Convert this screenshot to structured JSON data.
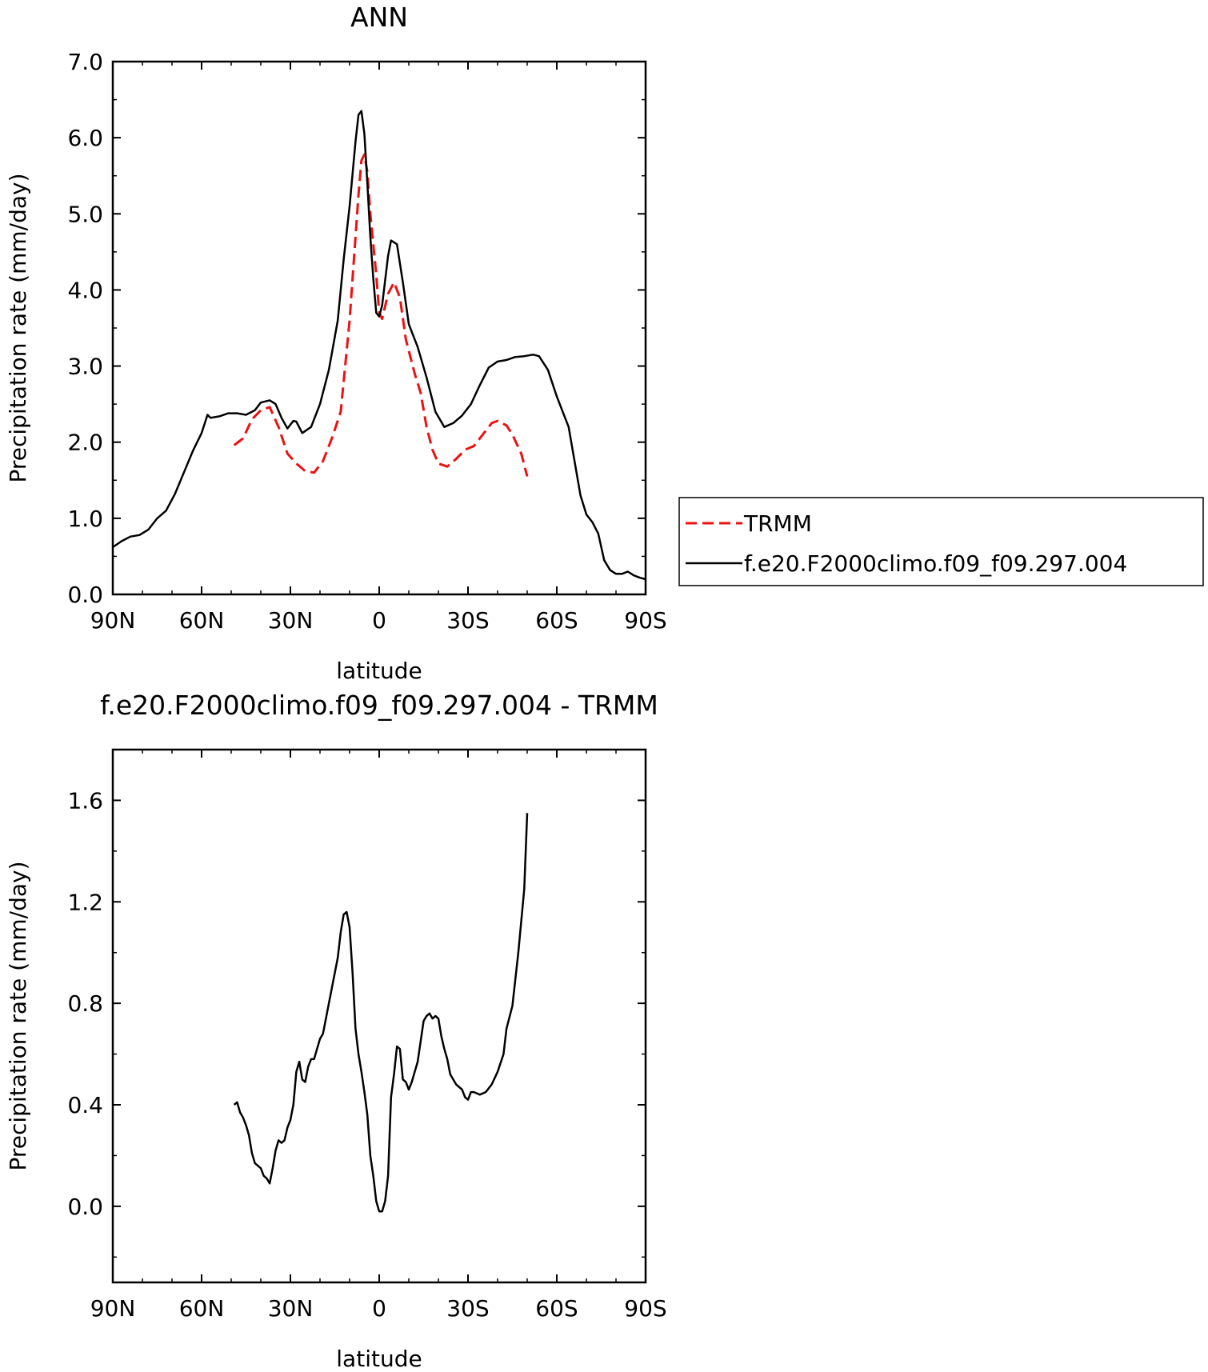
{
  "chart_data": [
    {
      "type": "line",
      "title": "ANN",
      "xlabel": "latitude",
      "ylabel": "Precipitation rate (mm/day)",
      "xlim": [
        90,
        -90
      ],
      "ylim": [
        0,
        7
      ],
      "x_ticks": [
        90,
        60,
        30,
        0,
        -30,
        -60,
        -90
      ],
      "x_tick_labels": [
        "90N",
        "60N",
        "30N",
        "0",
        "30S",
        "60S",
        "90S"
      ],
      "y_ticks": [
        0,
        1,
        2,
        3,
        4,
        5,
        6,
        7
      ],
      "y_tick_labels": [
        "0.0",
        "1.0",
        "2.0",
        "3.0",
        "4.0",
        "5.0",
        "6.0",
        "7.0"
      ],
      "legend_position": "right",
      "series": [
        {
          "name": "TRMM",
          "color": "#ee1111",
          "style": "dashed",
          "points": [
            [
              49,
              1.96
            ],
            [
              46,
              2.05
            ],
            [
              43,
              2.3
            ],
            [
              40,
              2.42
            ],
            [
              37,
              2.46
            ],
            [
              34,
              2.2
            ],
            [
              31,
              1.85
            ],
            [
              28,
              1.72
            ],
            [
              25,
              1.62
            ],
            [
              22,
              1.6
            ],
            [
              19,
              1.75
            ],
            [
              16,
              2.05
            ],
            [
              13,
              2.4
            ],
            [
              10,
              3.6
            ],
            [
              7,
              5.25
            ],
            [
              6,
              5.7
            ],
            [
              5,
              5.78
            ],
            [
              4,
              5.55
            ],
            [
              3,
              5.0
            ],
            [
              1,
              4.2
            ],
            [
              0,
              3.7
            ],
            [
              -1,
              3.62
            ],
            [
              -3,
              3.95
            ],
            [
              -5,
              4.1
            ],
            [
              -7,
              3.9
            ],
            [
              -9,
              3.35
            ],
            [
              -12,
              2.9
            ],
            [
              -14,
              2.65
            ],
            [
              -16,
              2.2
            ],
            [
              -18,
              1.9
            ],
            [
              -20,
              1.72
            ],
            [
              -23,
              1.68
            ],
            [
              -26,
              1.78
            ],
            [
              -29,
              1.9
            ],
            [
              -32,
              1.95
            ],
            [
              -35,
              2.1
            ],
            [
              -38,
              2.25
            ],
            [
              -40,
              2.28
            ],
            [
              -43,
              2.22
            ],
            [
              -45,
              2.1
            ],
            [
              -48,
              1.85
            ],
            [
              -50,
              1.55
            ]
          ]
        },
        {
          "name": "f.e20.F2000climo.f09_f09.297.004",
          "color": "#000000",
          "style": "solid",
          "points": [
            [
              90,
              0.62
            ],
            [
              87,
              0.7
            ],
            [
              84,
              0.76
            ],
            [
              81,
              0.78
            ],
            [
              78,
              0.85
            ],
            [
              75,
              1.0
            ],
            [
              72,
              1.1
            ],
            [
              69,
              1.32
            ],
            [
              66,
              1.6
            ],
            [
              63,
              1.88
            ],
            [
              60,
              2.12
            ],
            [
              58,
              2.36
            ],
            [
              57,
              2.32
            ],
            [
              54,
              2.34
            ],
            [
              51,
              2.38
            ],
            [
              48,
              2.38
            ],
            [
              45,
              2.36
            ],
            [
              42,
              2.42
            ],
            [
              40,
              2.52
            ],
            [
              37,
              2.55
            ],
            [
              35,
              2.5
            ],
            [
              33,
              2.32
            ],
            [
              31,
              2.18
            ],
            [
              29,
              2.28
            ],
            [
              28,
              2.27
            ],
            [
              26,
              2.12
            ],
            [
              23,
              2.2
            ],
            [
              20,
              2.5
            ],
            [
              17,
              2.95
            ],
            [
              14,
              3.6
            ],
            [
              12,
              4.4
            ],
            [
              10,
              5.1
            ],
            [
              8,
              5.95
            ],
            [
              7,
              6.3
            ],
            [
              6,
              6.35
            ],
            [
              5,
              6.05
            ],
            [
              4,
              5.4
            ],
            [
              3,
              4.7
            ],
            [
              2,
              4.15
            ],
            [
              1,
              3.7
            ],
            [
              0,
              3.65
            ],
            [
              -1,
              3.8
            ],
            [
              -3,
              4.45
            ],
            [
              -4,
              4.65
            ],
            [
              -6,
              4.6
            ],
            [
              -8,
              4.1
            ],
            [
              -10,
              3.55
            ],
            [
              -13,
              3.25
            ],
            [
              -16,
              2.85
            ],
            [
              -19,
              2.4
            ],
            [
              -22,
              2.2
            ],
            [
              -25,
              2.25
            ],
            [
              -28,
              2.35
            ],
            [
              -31,
              2.5
            ],
            [
              -34,
              2.75
            ],
            [
              -37,
              2.98
            ],
            [
              -40,
              3.06
            ],
            [
              -43,
              3.08
            ],
            [
              -46,
              3.12
            ],
            [
              -49,
              3.13
            ],
            [
              -52,
              3.15
            ],
            [
              -54,
              3.13
            ],
            [
              -57,
              2.95
            ],
            [
              -60,
              2.6
            ],
            [
              -62,
              2.4
            ],
            [
              -64,
              2.2
            ],
            [
              -66,
              1.75
            ],
            [
              -68,
              1.3
            ],
            [
              -70,
              1.05
            ],
            [
              -72,
              0.95
            ],
            [
              -74,
              0.8
            ],
            [
              -76,
              0.45
            ],
            [
              -78,
              0.32
            ],
            [
              -80,
              0.27
            ],
            [
              -82,
              0.27
            ],
            [
              -84,
              0.3
            ],
            [
              -86,
              0.25
            ],
            [
              -88,
              0.22
            ],
            [
              -90,
              0.2
            ]
          ]
        }
      ]
    },
    {
      "type": "line",
      "title": "f.e20.F2000climo.f09_f09.297.004 - TRMM",
      "xlabel": "latitude",
      "ylabel": "Precipitation rate (mm/day)",
      "xlim": [
        90,
        -90
      ],
      "ylim": [
        -0.3,
        1.8
      ],
      "x_ticks": [
        90,
        60,
        30,
        0,
        -30,
        -60,
        -90
      ],
      "x_tick_labels": [
        "90N",
        "60N",
        "30N",
        "0",
        "30S",
        "60S",
        "90S"
      ],
      "y_ticks": [
        0,
        0.4,
        0.8,
        1.2,
        1.6
      ],
      "y_tick_labels": [
        "0.0",
        "0.4",
        "0.8",
        "1.2",
        "1.6"
      ],
      "series": [
        {
          "color": "#000000",
          "style": "solid",
          "points": [
            [
              49,
              0.4
            ],
            [
              48,
              0.41
            ],
            [
              47,
              0.37
            ],
            [
              46,
              0.35
            ],
            [
              45,
              0.32
            ],
            [
              44,
              0.28
            ],
            [
              43,
              0.21
            ],
            [
              42,
              0.17
            ],
            [
              40,
              0.15
            ],
            [
              39,
              0.12
            ],
            [
              38,
              0.11
            ],
            [
              37,
              0.09
            ],
            [
              36,
              0.15
            ],
            [
              35,
              0.22
            ],
            [
              34,
              0.26
            ],
            [
              33,
              0.25
            ],
            [
              32,
              0.26
            ],
            [
              31,
              0.31
            ],
            [
              30,
              0.34
            ],
            [
              29,
              0.4
            ],
            [
              28,
              0.53
            ],
            [
              27,
              0.57
            ],
            [
              26,
              0.5
            ],
            [
              25,
              0.49
            ],
            [
              24,
              0.55
            ],
            [
              23,
              0.58
            ],
            [
              22,
              0.58
            ],
            [
              21,
              0.62
            ],
            [
              20,
              0.66
            ],
            [
              19,
              0.68
            ],
            [
              18,
              0.74
            ],
            [
              16,
              0.86
            ],
            [
              14,
              0.98
            ],
            [
              13,
              1.08
            ],
            [
              12,
              1.15
            ],
            [
              11,
              1.16
            ],
            [
              10,
              1.1
            ],
            [
              9,
              0.92
            ],
            [
              8,
              0.7
            ],
            [
              7,
              0.6
            ],
            [
              6,
              0.53
            ],
            [
              5,
              0.45
            ],
            [
              4,
              0.36
            ],
            [
              3,
              0.2
            ],
            [
              2,
              0.12
            ],
            [
              1,
              0.02
            ],
            [
              0,
              -0.02
            ],
            [
              -1,
              -0.02
            ],
            [
              -2,
              0.02
            ],
            [
              -3,
              0.12
            ],
            [
              -4,
              0.43
            ],
            [
              -5,
              0.52
            ],
            [
              -6,
              0.63
            ],
            [
              -7,
              0.62
            ],
            [
              -8,
              0.5
            ],
            [
              -9,
              0.49
            ],
            [
              -10,
              0.46
            ],
            [
              -11,
              0.49
            ],
            [
              -12,
              0.53
            ],
            [
              -13,
              0.57
            ],
            [
              -14,
              0.65
            ],
            [
              -15,
              0.73
            ],
            [
              -16,
              0.75
            ],
            [
              -17,
              0.76
            ],
            [
              -18,
              0.74
            ],
            [
              -19,
              0.75
            ],
            [
              -20,
              0.74
            ],
            [
              -21,
              0.67
            ],
            [
              -22,
              0.62
            ],
            [
              -23,
              0.58
            ],
            [
              -24,
              0.52
            ],
            [
              -26,
              0.48
            ],
            [
              -28,
              0.46
            ],
            [
              -29,
              0.43
            ],
            [
              -30,
              0.42
            ],
            [
              -31,
              0.45
            ],
            [
              -32,
              0.45
            ],
            [
              -34,
              0.44
            ],
            [
              -36,
              0.45
            ],
            [
              -38,
              0.48
            ],
            [
              -40,
              0.53
            ],
            [
              -42,
              0.6
            ],
            [
              -43,
              0.7
            ],
            [
              -45,
              0.79
            ],
            [
              -47,
              1.0
            ],
            [
              -49,
              1.25
            ],
            [
              -50,
              1.55
            ]
          ]
        }
      ]
    }
  ]
}
